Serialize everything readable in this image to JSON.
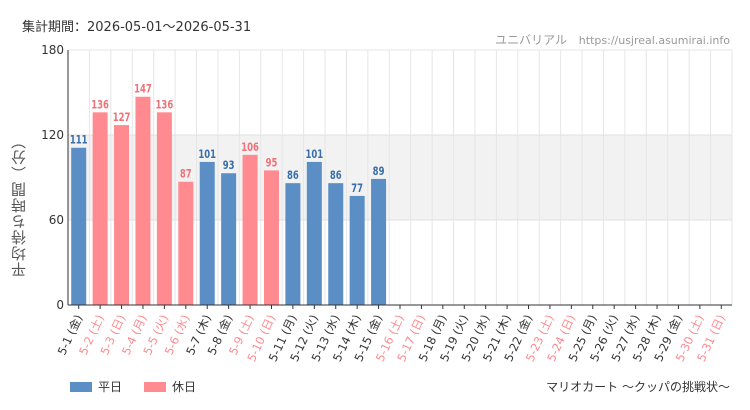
{
  "header": {
    "period": "集計期間：2026-05-01～2026-05-31",
    "source_name": "ユニバリアル",
    "source_url": "https://usjreal.asumirai.info"
  },
  "legend": [
    {
      "name": "平日",
      "color": "#5b8ec4"
    },
    {
      "name": "休日",
      "color": "#ff8a8f"
    }
  ],
  "caption": "マリオカート ～クッパの挑戦状～",
  "chart_data": {
    "type": "bar",
    "ylabel": "平均待ち時間（分）",
    "ylim": [
      0,
      180
    ],
    "yticks": [
      0,
      60,
      120,
      180
    ],
    "highlight_band": [
      60,
      120
    ],
    "grid": true,
    "legend_position": "bottom-left",
    "colors": {
      "weekday": "#5b8ec4",
      "holiday": "#ff8a8f",
      "weekday_label": "#3a6ea8",
      "holiday_label": "#f07078"
    },
    "categories": [
      "5-1 (金)",
      "5-2 (土)",
      "5-3 (日)",
      "5-4 (月)",
      "5-5 (火)",
      "5-6 (水)",
      "5-7 (木)",
      "5-8 (金)",
      "5-9 (土)",
      "5-10 (日)",
      "5-11 (月)",
      "5-12 (火)",
      "5-13 (水)",
      "5-14 (木)",
      "5-15 (金)",
      "5-16 (土)",
      "5-17 (日)",
      "5-18 (月)",
      "5-19 (火)",
      "5-20 (水)",
      "5-21 (木)",
      "5-22 (金)",
      "5-23 (土)",
      "5-24 (日)",
      "5-25 (月)",
      "5-26 (火)",
      "5-27 (水)",
      "5-28 (木)",
      "5-29 (金)",
      "5-30 (土)",
      "5-31 (日)"
    ],
    "day_type": [
      "weekday",
      "holiday",
      "holiday",
      "holiday",
      "holiday",
      "holiday",
      "weekday",
      "weekday",
      "holiday",
      "holiday",
      "weekday",
      "weekday",
      "weekday",
      "weekday",
      "weekday",
      "holiday",
      "holiday",
      "weekday",
      "weekday",
      "weekday",
      "weekday",
      "weekday",
      "holiday",
      "holiday",
      "weekday",
      "weekday",
      "weekday",
      "weekday",
      "weekday",
      "holiday",
      "holiday"
    ],
    "values": [
      111,
      136,
      127,
      147,
      136,
      87,
      101,
      93,
      106,
      95,
      86,
      101,
      86,
      77,
      89,
      null,
      null,
      null,
      null,
      null,
      null,
      null,
      null,
      null,
      null,
      null,
      null,
      null,
      null,
      null,
      null
    ]
  }
}
